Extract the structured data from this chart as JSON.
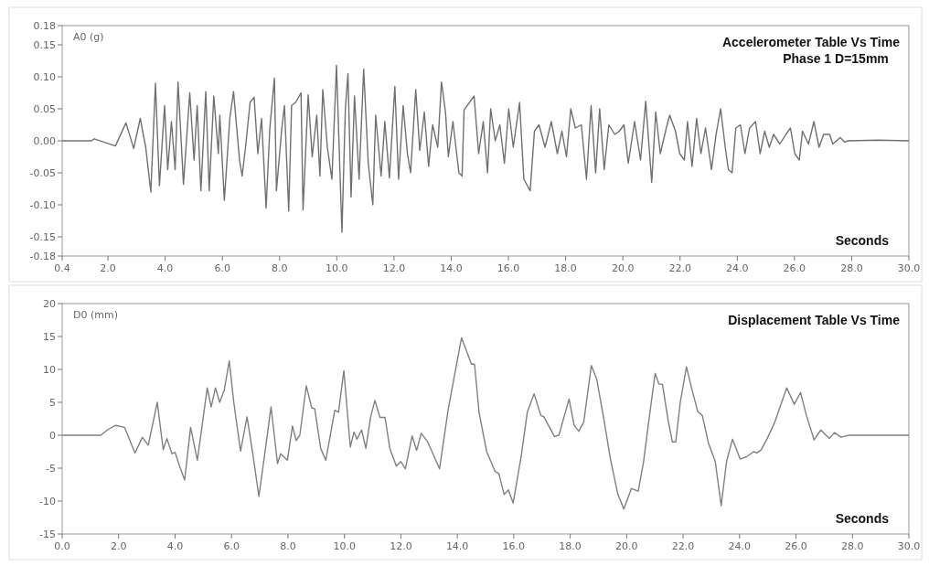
{
  "chart_data": [
    {
      "type": "line",
      "title": "Accelerometer Table Vs Time",
      "subtitle": "Phase 1 D=15mm",
      "xlabel": "Seconds",
      "ylabel": "A0 (g)",
      "xlim": [
        0.4,
        30
      ],
      "ylim": [
        -0.18,
        0.18
      ],
      "xticks": [
        0.4,
        {
          "value": 2,
          "label": "2.0"
        },
        {
          "value": 4,
          "label": "4.0"
        },
        {
          "value": 6,
          "label": "6.0"
        },
        {
          "value": 8,
          "label": "8.0"
        },
        {
          "value": 10,
          "label": "10.0"
        },
        {
          "value": 12,
          "label": "12.0"
        },
        {
          "value": 14,
          "label": "14.0"
        },
        {
          "value": 16,
          "label": "16.0"
        },
        {
          "value": 18,
          "label": "18.0"
        },
        {
          "value": 20,
          "label": "20.0"
        },
        {
          "value": 22,
          "label": "22.0"
        },
        {
          "value": 24,
          "label": "24.0"
        },
        {
          "value": 26,
          "label": "26.0"
        },
        {
          "value": 28,
          "label": "28.0"
        },
        {
          "value": 30,
          "label": "30.0"
        }
      ],
      "yticks": [
        0.18,
        0.15,
        {
          "value": 0.1,
          "label": "0.10"
        },
        0.05,
        {
          "value": 0,
          "label": "0.00"
        },
        -0.05,
        {
          "value": -0.1,
          "label": "-0.10"
        },
        -0.15,
        -0.18
      ],
      "grid": false,
      "marker": "none",
      "line_style": "solid",
      "series": [
        {
          "color": "#707070",
          "x": [
            0.4,
            1.42,
            1.52,
            2.26,
            2.63,
            2.9,
            3.13,
            3.32,
            3.5,
            3.66,
            3.8,
            3.98,
            4.09,
            4.22,
            4.35,
            4.45,
            4.64,
            4.86,
            5.01,
            5.12,
            5.25,
            5.42,
            5.54,
            5.7,
            5.86,
            5.91,
            6.07,
            6.26,
            6.39,
            6.6,
            6.69,
            6.81,
            6.97,
            7.11,
            7.24,
            7.37,
            7.53,
            7.66,
            7.82,
            7.89,
            8.08,
            8.17,
            8.32,
            8.42,
            8.56,
            8.75,
            8.82,
            9.0,
            9.14,
            9.3,
            9.41,
            9.51,
            9.67,
            9.83,
            9.99,
            10.18,
            10.3,
            10.39,
            10.5,
            10.62,
            10.78,
            10.94,
            11.1,
            11.26,
            11.36,
            11.55,
            11.68,
            11.84,
            12.03,
            12.16,
            12.32,
            12.47,
            12.58,
            12.76,
            12.9,
            13.06,
            13.21,
            13.35,
            13.53,
            13.66,
            13.8,
            13.9,
            14.06,
            14.27,
            14.38,
            14.45,
            14.8,
            14.96,
            15.12,
            15.27,
            15.38,
            15.54,
            15.7,
            15.86,
            16.01,
            16.17,
            16.39,
            16.54,
            16.76,
            16.91,
            17.07,
            17.28,
            17.5,
            17.71,
            17.87,
            18.03,
            18.18,
            18.34,
            18.55,
            18.73,
            18.89,
            19.05,
            19.19,
            19.35,
            19.51,
            19.72,
            19.88,
            20.04,
            20.19,
            20.41,
            20.62,
            20.8,
            21.01,
            21.15,
            21.31,
            21.52,
            21.64,
            21.84,
            21.99,
            22.15,
            22.26,
            22.42,
            22.58,
            22.73,
            22.89,
            23.1,
            23.26,
            23.42,
            23.58,
            23.69,
            23.82,
            23.95,
            24.11,
            24.27,
            24.43,
            24.64,
            24.8,
            24.96,
            25.12,
            25.27,
            25.49,
            25.7,
            25.86,
            26.01,
            26.17,
            26.28,
            26.49,
            26.68,
            26.86,
            27.02,
            27.23,
            27.34,
            27.6,
            27.76,
            27.87,
            28.93,
            30
          ],
          "values": [
            0,
            0,
            0.003,
            -0.008,
            0.028,
            -0.012,
            0.035,
            -0.01,
            -0.08,
            0.09,
            -0.07,
            0.055,
            -0.045,
            0.03,
            -0.045,
            0.092,
            -0.068,
            0.075,
            -0.03,
            0.055,
            -0.078,
            0.077,
            -0.078,
            0.07,
            -0.02,
            0.04,
            -0.093,
            0.035,
            0.077,
            -0.03,
            -0.055,
            -0.01,
            0.06,
            0.068,
            -0.02,
            0.035,
            -0.105,
            0.02,
            0.098,
            -0.078,
            0.02,
            0.055,
            -0.11,
            0.055,
            0.06,
            0.075,
            -0.108,
            0.072,
            -0.025,
            0.04,
            -0.055,
            0.08,
            -0.01,
            -0.06,
            0.118,
            -0.143,
            0.05,
            0.105,
            -0.088,
            0.07,
            -0.06,
            0.112,
            -0.035,
            -0.1,
            0.04,
            -0.055,
            0.03,
            -0.058,
            0.085,
            -0.06,
            0.055,
            -0.02,
            -0.05,
            0.08,
            -0.015,
            0.045,
            -0.04,
            0.025,
            -0.01,
            0.092,
            0.045,
            -0.025,
            0.03,
            -0.05,
            -0.055,
            0.048,
            0.07,
            -0.02,
            0.03,
            -0.05,
            0.05,
            0.0,
            0.025,
            -0.035,
            0.05,
            -0.01,
            0.06,
            -0.06,
            -0.078,
            0.015,
            0.025,
            -0.01,
            0.03,
            -0.02,
            0.015,
            -0.025,
            0.05,
            0.02,
            0.025,
            -0.06,
            0.055,
            -0.05,
            0.05,
            -0.045,
            0.025,
            0.01,
            0.015,
            0.025,
            -0.035,
            0.03,
            -0.03,
            0.062,
            -0.065,
            0.045,
            -0.02,
            0.02,
            0.04,
            0.015,
            -0.02,
            -0.03,
            0.03,
            -0.04,
            0.035,
            -0.02,
            0.02,
            -0.045,
            0.01,
            0.05,
            -0.01,
            -0.045,
            -0.05,
            0.02,
            0.025,
            -0.02,
            0.02,
            0.03,
            -0.02,
            0.015,
            -0.01,
            0.01,
            -0.005,
            0.01,
            0.02,
            -0.02,
            -0.03,
            0.015,
            -0.005,
            0.03,
            -0.01,
            0.01,
            0.01,
            -0.005,
            0.005,
            -0.002,
            0,
            0.001,
            0
          ]
        }
      ]
    },
    {
      "type": "line",
      "title": "Displacement Table Vs Time",
      "xlabel": "Seconds",
      "ylabel": "D0 (mm)",
      "xlim": [
        0,
        30
      ],
      "ylim": [
        -15,
        20
      ],
      "xticks": [
        {
          "value": 0,
          "label": "0.0"
        },
        {
          "value": 2,
          "label": "2.0"
        },
        {
          "value": 4,
          "label": "4.0"
        },
        {
          "value": 6,
          "label": "6.0"
        },
        {
          "value": 8,
          "label": "8.0"
        },
        {
          "value": 10,
          "label": "10.0"
        },
        {
          "value": 12,
          "label": "12.0"
        },
        {
          "value": 14,
          "label": "14.0"
        },
        {
          "value": 16,
          "label": "16.0"
        },
        {
          "value": 18,
          "label": "18.0"
        },
        {
          "value": 20,
          "label": "20.0"
        },
        {
          "value": 22,
          "label": "22.0"
        },
        {
          "value": 24,
          "label": "24.0"
        },
        {
          "value": 26,
          "label": "26.0"
        },
        {
          "value": 28,
          "label": "28.0"
        },
        {
          "value": 30,
          "label": "30.0"
        }
      ],
      "yticks": [
        20,
        15,
        10,
        5,
        0,
        -5,
        -10,
        -15
      ],
      "grid": false,
      "marker": "none",
      "line_style": "solid",
      "series": [
        {
          "color": "#808080",
          "x": [
            0,
            1.37,
            1.6,
            1.89,
            2.21,
            2.58,
            2.84,
            3.05,
            3.37,
            3.58,
            3.71,
            3.89,
            4.0,
            4.16,
            4.34,
            4.55,
            4.79,
            5.14,
            5.28,
            5.43,
            5.58,
            5.74,
            5.92,
            6.08,
            6.32,
            6.55,
            6.76,
            6.97,
            7.14,
            7.4,
            7.63,
            7.74,
            7.98,
            8.16,
            8.29,
            8.42,
            8.65,
            8.84,
            8.95,
            9.16,
            9.34,
            9.66,
            9.79,
            9.98,
            10.21,
            10.34,
            10.44,
            10.61,
            10.76,
            10.93,
            11.08,
            11.26,
            11.44,
            11.61,
            11.84,
            12.0,
            12.16,
            12.4,
            12.56,
            12.72,
            12.95,
            13.37,
            13.68,
            14.15,
            14.5,
            14.61,
            14.77,
            15.04,
            15.34,
            15.47,
            15.66,
            15.81,
            15.98,
            16.27,
            16.48,
            16.72,
            16.96,
            17.07,
            17.44,
            17.6,
            17.96,
            18.14,
            18.3,
            18.48,
            18.75,
            18.94,
            19.21,
            19.42,
            19.69,
            19.9,
            20.17,
            20.41,
            20.6,
            20.78,
            21.01,
            21.14,
            21.27,
            21.48,
            21.62,
            21.74,
            21.9,
            22.12,
            22.31,
            22.52,
            22.68,
            22.9,
            23.14,
            23.35,
            23.54,
            23.75,
            24.02,
            24.24,
            24.5,
            24.61,
            24.77,
            24.98,
            25.25,
            25.67,
            25.94,
            26.16,
            26.37,
            26.64,
            26.88,
            27.18,
            27.36,
            27.6,
            27.87,
            30
          ],
          "values": [
            0,
            0,
            0.8,
            1.5,
            1.2,
            -2.7,
            -0.3,
            -1.5,
            5,
            -2.2,
            -0.5,
            -2.8,
            -2.6,
            -4.7,
            -6.8,
            1.2,
            -3.8,
            7.2,
            4.3,
            7.2,
            5,
            6.8,
            11.3,
            5,
            -2.4,
            2.8,
            -3,
            -9.3,
            -4,
            4.3,
            -4.3,
            -2.8,
            -3.8,
            1.4,
            -0.8,
            0,
            7.5,
            4.2,
            4,
            -2,
            -3.8,
            3.8,
            3.5,
            9.8,
            -1.8,
            0.5,
            -0.6,
            0.8,
            -2,
            2.8,
            5.3,
            2.7,
            2.7,
            -2,
            -4.7,
            -4,
            -5.1,
            -0.1,
            -2.3,
            0.3,
            -1,
            -5.1,
            4,
            14.8,
            10.8,
            10.8,
            3.5,
            -2.5,
            -5.5,
            -5.8,
            -9,
            -8.3,
            -10.3,
            -3,
            3.5,
            6.3,
            3,
            2.8,
            -0.2,
            0,
            5.5,
            1.5,
            0.6,
            2,
            10.6,
            8.5,
            2,
            -3.5,
            -9,
            -11.2,
            -8.1,
            -8.5,
            -4,
            2,
            9.4,
            7.8,
            7.7,
            2,
            -1,
            -1,
            5,
            10.4,
            7,
            3.6,
            3,
            -1.2,
            -4,
            -10.7,
            -4,
            -0.6,
            -3.6,
            -3.3,
            -2.5,
            -2.7,
            -2.2,
            -0.5,
            2,
            7.2,
            4.7,
            6.5,
            3,
            -0.7,
            0.8,
            -0.5,
            0.4,
            -0.3,
            0,
            0
          ]
        }
      ]
    }
  ]
}
